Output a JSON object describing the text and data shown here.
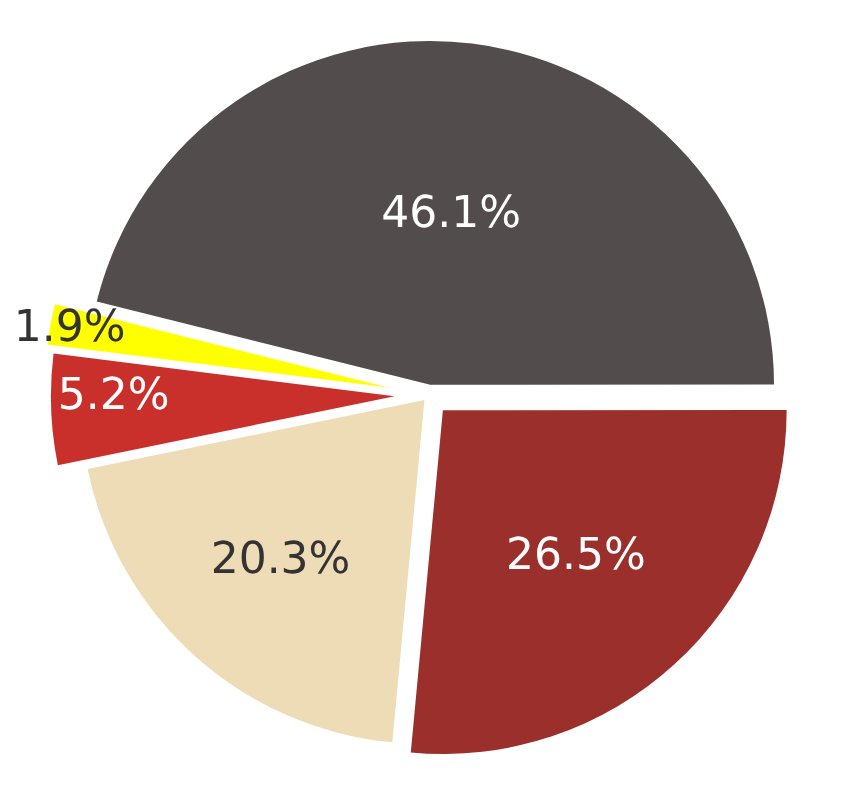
{
  "chart_data": {
    "type": "pie",
    "categories": [
      null,
      null,
      null,
      null,
      null
    ],
    "values": [
      46.1,
      26.5,
      20.3,
      5.2,
      1.9
    ],
    "value_labels": [
      "46.1%",
      "26.5%",
      "20.3%",
      "5.2%",
      "1.9%"
    ],
    "colors": [
      "#524c4c",
      "#9b2f2b",
      "#eedcb6",
      "#c9302c",
      "#ffff00"
    ],
    "legend": false
  }
}
